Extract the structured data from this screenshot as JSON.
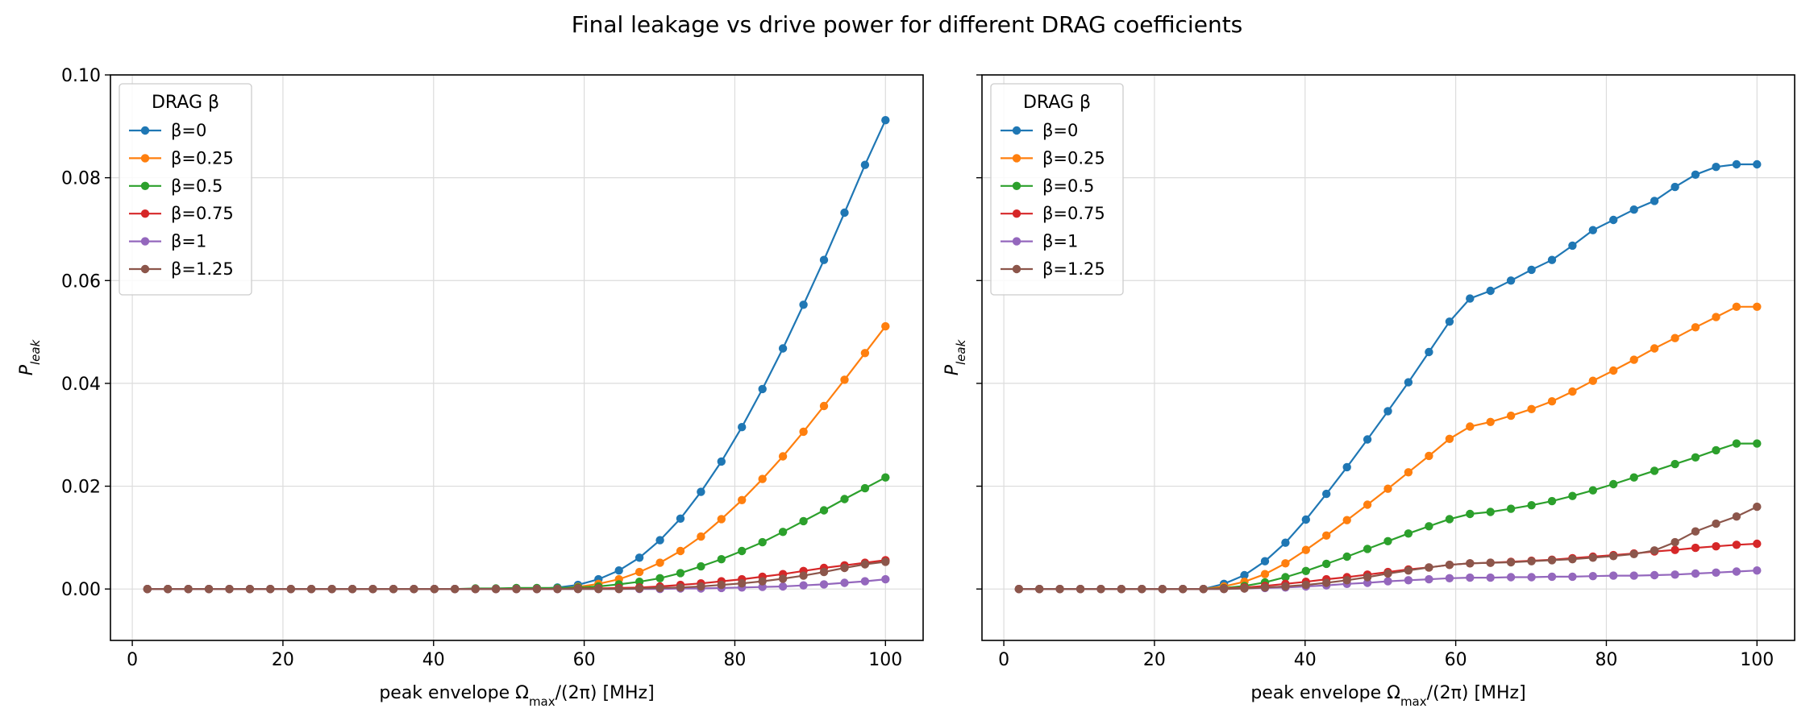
{
  "figure": {
    "title": "Final leakage vs drive power for different DRAG coefficients"
  },
  "chart_data": [
    {
      "type": "line",
      "xlabel": "peak envelope Ω_max/(2π) [MHz]",
      "ylabel": "P_leak",
      "xlim": [
        -2.9,
        105
      ],
      "ylim": [
        -0.01,
        0.1
      ],
      "xticks": [
        "0",
        "20",
        "40",
        "60",
        "80",
        "100"
      ],
      "yticks": [
        "0.00",
        "0.02",
        "0.04",
        "0.06",
        "0.08",
        "0.10"
      ],
      "grid": true,
      "legend": {
        "title": "DRAG β",
        "placement": "top-left"
      },
      "x": [
        2,
        4.72,
        7.44,
        10.17,
        12.89,
        15.61,
        18.33,
        21.06,
        23.78,
        26.5,
        29.22,
        31.94,
        34.67,
        37.39,
        40.11,
        42.83,
        45.56,
        48.28,
        51,
        53.72,
        56.44,
        59.17,
        61.89,
        64.61,
        67.33,
        70.06,
        72.78,
        75.5,
        78.22,
        80.94,
        83.67,
        86.39,
        89.11,
        91.83,
        94.56,
        97.28,
        100
      ],
      "series": [
        {
          "name": "β=0",
          "color": "#1f77b4",
          "values": [
            0,
            0,
            0,
            0,
            0,
            0,
            0,
            0,
            0,
            0,
            0,
            0,
            0,
            0,
            0,
            0,
            0,
            0,
            0,
            0,
            0.0003,
            0.0008,
            0.0019,
            0.0036,
            0.0061,
            0.0095,
            0.0137,
            0.0189,
            0.0248,
            0.0315,
            0.0389,
            0.0468,
            0.0553,
            0.064,
            0.0732,
            0.0825,
            0.0912
          ]
        },
        {
          "name": "β=0.25",
          "color": "#ff7f0e",
          "values": [
            0,
            0,
            0,
            0,
            0,
            0,
            0,
            0,
            0,
            0,
            0,
            0,
            0,
            0,
            0,
            0,
            0,
            0,
            0,
            0,
            0.0001,
            0.0004,
            0.001,
            0.0019,
            0.0033,
            0.0051,
            0.0074,
            0.0102,
            0.0136,
            0.0173,
            0.0214,
            0.0258,
            0.0306,
            0.0356,
            0.0407,
            0.0459,
            0.0511
          ]
        },
        {
          "name": "β=0.5",
          "color": "#2ca02c",
          "values": [
            0,
            0,
            0,
            0,
            0,
            0,
            0,
            0,
            0,
            0,
            0,
            0,
            0,
            0,
            0,
            0,
            0.0001,
            0.0001,
            0.0002,
            0.0002,
            0.0002,
            0.0003,
            0.0005,
            0.0009,
            0.0014,
            0.0021,
            0.0031,
            0.0044,
            0.0058,
            0.0074,
            0.0091,
            0.0111,
            0.0132,
            0.0153,
            0.0175,
            0.0196,
            0.0217
          ]
        },
        {
          "name": "β=0.75",
          "color": "#d62728",
          "values": [
            0,
            0,
            0,
            0,
            0,
            0,
            0,
            0,
            0,
            0,
            0,
            0,
            0,
            0,
            0,
            0,
            0,
            0,
            0,
            0,
            0,
            0.0001,
            0.0001,
            0.0002,
            0.0003,
            0.0005,
            0.0008,
            0.0011,
            0.0015,
            0.0019,
            0.0024,
            0.0029,
            0.0035,
            0.0041,
            0.0046,
            0.0051,
            0.0056
          ]
        },
        {
          "name": "β=1",
          "color": "#9467bd",
          "values": [
            0,
            0,
            0,
            0,
            0,
            0,
            0,
            0,
            0,
            0,
            0,
            0,
            0,
            0,
            0,
            0,
            0,
            0,
            0,
            0,
            0,
            0,
            0,
            0,
            0,
            0,
            0.0001,
            0.0001,
            0.0002,
            0.0003,
            0.0004,
            0.0005,
            0.0007,
            0.0009,
            0.0012,
            0.0015,
            0.0019
          ]
        },
        {
          "name": "β=1.25",
          "color": "#8c564b",
          "values": [
            0,
            0,
            0,
            0,
            0,
            0,
            0,
            0,
            0,
            0,
            0,
            0,
            0,
            0,
            0,
            0,
            0,
            0,
            0,
            0,
            0,
            0,
            0,
            0,
            0.0001,
            0.0002,
            0.0003,
            0.0005,
            0.0008,
            0.0011,
            0.0015,
            0.002,
            0.0026,
            0.0033,
            0.0041,
            0.0048,
            0.0053
          ]
        }
      ]
    },
    {
      "type": "line",
      "xlabel": "peak envelope Ω_max/(2π) [MHz]",
      "ylabel": "P_leak",
      "xlim": [
        -2.9,
        105
      ],
      "ylim": [
        -0.01,
        0.1
      ],
      "xticks": [
        "0",
        "20",
        "40",
        "60",
        "80",
        "100"
      ],
      "yticks": [
        "0.00",
        "0.02",
        "0.04",
        "0.06",
        "0.08",
        "0.10"
      ],
      "grid": true,
      "legend": {
        "title": "DRAG β",
        "placement": "top-left"
      },
      "x": [
        2,
        4.72,
        7.44,
        10.17,
        12.89,
        15.61,
        18.33,
        21.06,
        23.78,
        26.5,
        29.22,
        31.94,
        34.67,
        37.39,
        40.11,
        42.83,
        45.56,
        48.28,
        51,
        53.72,
        56.44,
        59.17,
        61.89,
        64.61,
        67.33,
        70.06,
        72.78,
        75.5,
        78.22,
        80.94,
        83.67,
        86.39,
        89.11,
        91.83,
        94.56,
        97.28,
        100
      ],
      "series": [
        {
          "name": "β=0",
          "color": "#1f77b4",
          "values": [
            0,
            0,
            0,
            0,
            0,
            0,
            0,
            0,
            0,
            0,
            0.001,
            0.0027,
            0.0054,
            0.009,
            0.0135,
            0.0185,
            0.0237,
            0.0291,
            0.0346,
            0.0402,
            0.0461,
            0.052,
            0.0565,
            0.058,
            0.06,
            0.0621,
            0.064,
            0.0668,
            0.0698,
            0.0718,
            0.0738,
            0.0755,
            0.0782,
            0.0806,
            0.0821,
            0.0826,
            0.0826
          ]
        },
        {
          "name": "β=0.25",
          "color": "#ff7f0e",
          "values": [
            0,
            0,
            0,
            0,
            0,
            0,
            0,
            0,
            0,
            0,
            0.0005,
            0.0014,
            0.0029,
            0.005,
            0.0076,
            0.0104,
            0.0134,
            0.0164,
            0.0195,
            0.0227,
            0.0259,
            0.0292,
            0.0316,
            0.0325,
            0.0337,
            0.035,
            0.0365,
            0.0384,
            0.0405,
            0.0425,
            0.0446,
            0.0468,
            0.0488,
            0.0509,
            0.0529,
            0.0549,
            0.0549
          ]
        },
        {
          "name": "β=0.5",
          "color": "#2ca02c",
          "values": [
            0,
            0,
            0,
            0,
            0,
            0,
            0,
            0,
            0,
            0,
            0.0002,
            0.0006,
            0.0013,
            0.0023,
            0.0035,
            0.0049,
            0.0063,
            0.0078,
            0.0093,
            0.0108,
            0.0122,
            0.0136,
            0.0146,
            0.015,
            0.0156,
            0.0163,
            0.0171,
            0.0181,
            0.0192,
            0.0204,
            0.0217,
            0.023,
            0.0243,
            0.0256,
            0.027,
            0.0283,
            0.0283
          ]
        },
        {
          "name": "β=0.75",
          "color": "#d62728",
          "values": [
            0,
            0,
            0,
            0,
            0,
            0,
            0,
            0,
            0,
            0,
            0.0001,
            0.0003,
            0.0006,
            0.001,
            0.0014,
            0.0019,
            0.0023,
            0.0028,
            0.0033,
            0.0038,
            0.0042,
            0.0047,
            0.005,
            0.0051,
            0.0053,
            0.0055,
            0.0057,
            0.006,
            0.0063,
            0.0066,
            0.0069,
            0.0073,
            0.0076,
            0.008,
            0.0083,
            0.0086,
            0.0088
          ]
        },
        {
          "name": "β=1",
          "color": "#9467bd",
          "values": [
            0,
            0,
            0,
            0,
            0,
            0,
            0,
            0,
            0,
            0,
            0,
            0.0001,
            0.0002,
            0.0003,
            0.0005,
            0.0007,
            0.001,
            0.0012,
            0.0015,
            0.0017,
            0.0019,
            0.0021,
            0.0022,
            0.0022,
            0.0023,
            0.0023,
            0.0024,
            0.0024,
            0.0025,
            0.0026,
            0.0026,
            0.0027,
            0.0028,
            0.003,
            0.0032,
            0.0034,
            0.0036
          ]
        },
        {
          "name": "β=1.25",
          "color": "#8c564b",
          "values": [
            0,
            0,
            0,
            0,
            0,
            0,
            0,
            0,
            0,
            0,
            0,
            0.0001,
            0.0003,
            0.0005,
            0.0008,
            0.0012,
            0.0017,
            0.0023,
            0.003,
            0.0036,
            0.0042,
            0.0047,
            0.005,
            0.0051,
            0.0052,
            0.0054,
            0.0056,
            0.0058,
            0.0061,
            0.0064,
            0.0068,
            0.0075,
            0.0091,
            0.0112,
            0.0127,
            0.0141,
            0.016
          ]
        }
      ]
    }
  ]
}
